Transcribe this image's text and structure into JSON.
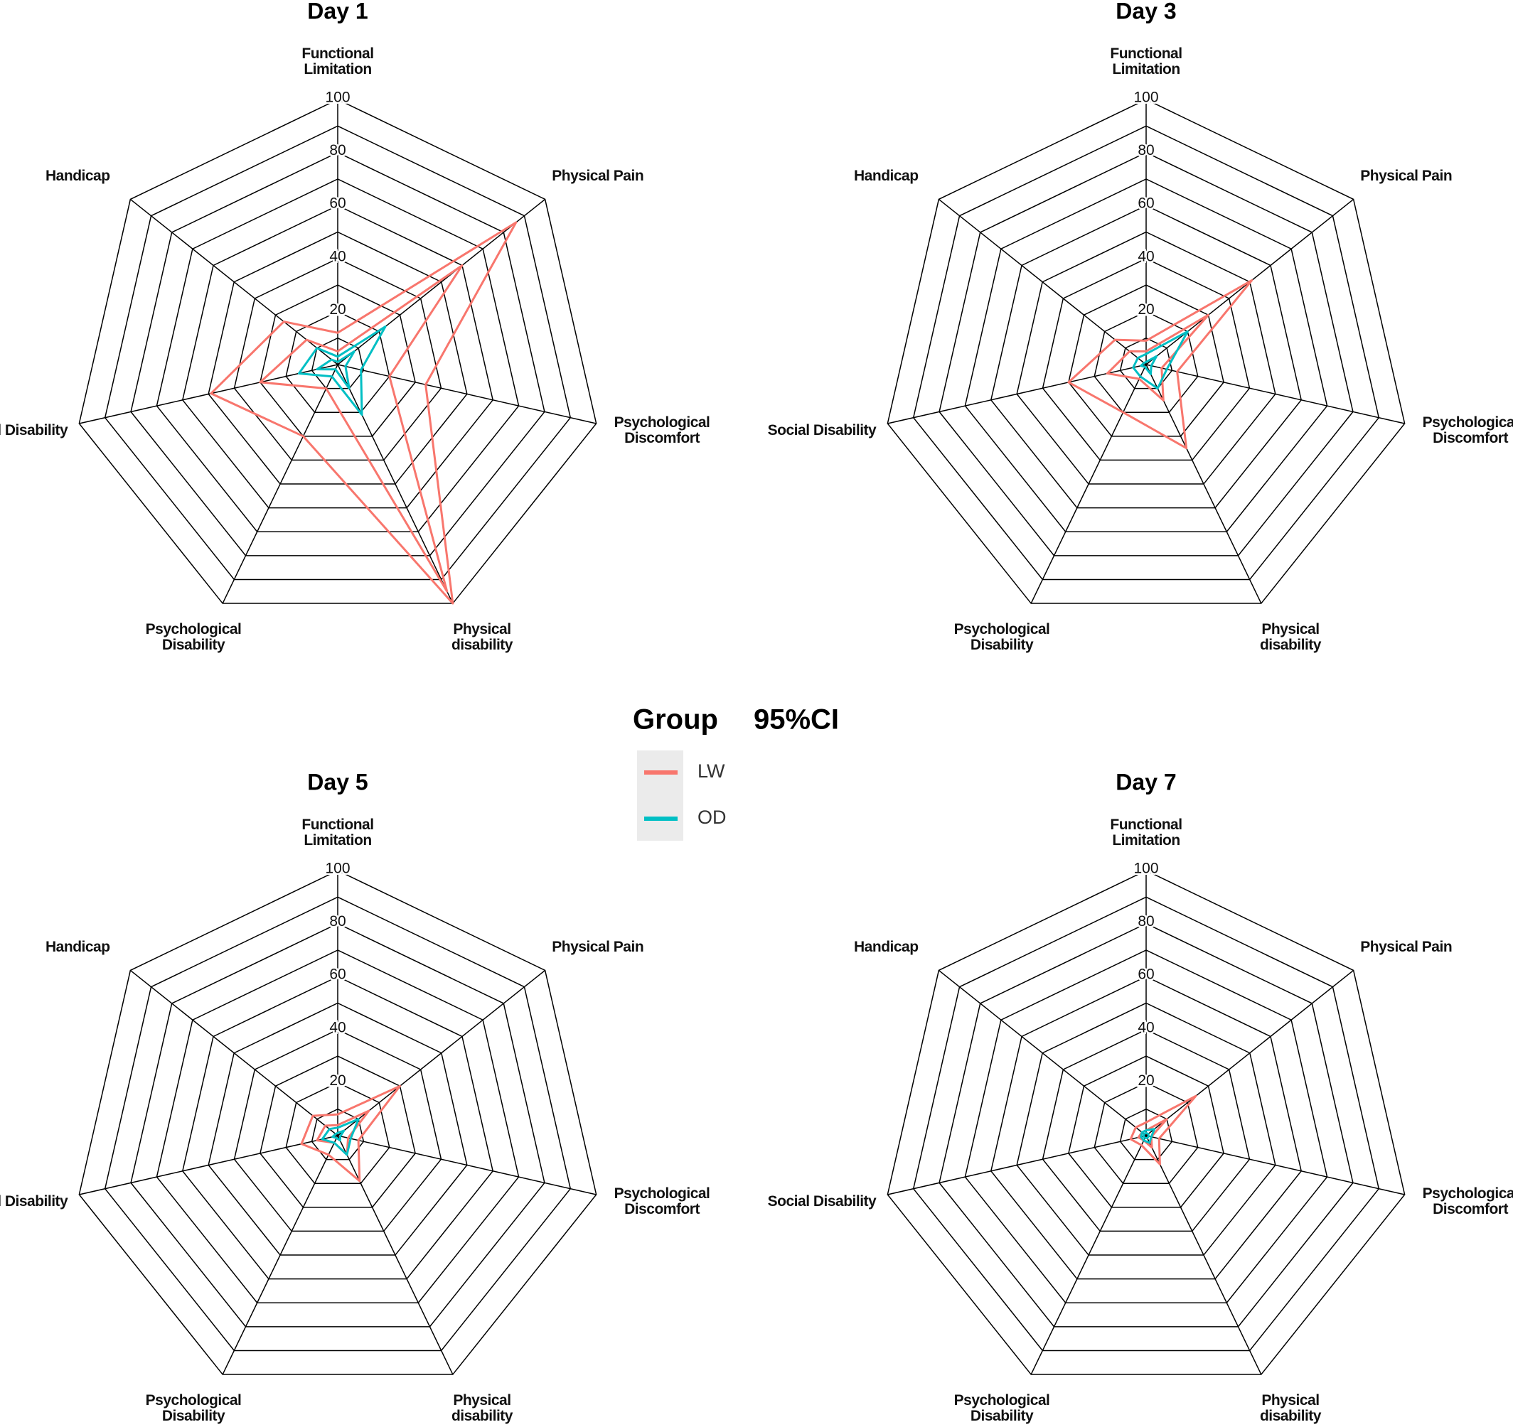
{
  "chart_data": [
    {
      "type": "radar",
      "title": "Day 1",
      "categories": [
        "Functional Limitation",
        "Physical Pain",
        "Psychological Discomfort",
        "Physical disability",
        "Psychological Disability",
        "Social Disability",
        "Handicap"
      ],
      "ylim": [
        0,
        100
      ],
      "yticks": [
        20,
        40,
        60,
        80,
        100
      ],
      "minor_ticks": [
        10,
        30,
        50,
        70,
        90
      ],
      "series": [
        {
          "name": "LW",
          "color": "#f8766d",
          "values": [
            12,
            86,
            34,
            100,
            30,
            49,
            26
          ],
          "lower": [
            5,
            60,
            20,
            95,
            10,
            30,
            15
          ]
        },
        {
          "name": "OD",
          "color": "#00bfc4",
          "values": [
            3,
            23,
            9,
            21,
            5,
            15,
            10
          ],
          "lower": [
            1,
            8,
            3,
            10,
            2,
            8,
            3
          ]
        }
      ]
    },
    {
      "type": "radar",
      "title": "Day 3",
      "categories": [
        "Functional Limitation",
        "Physical Pain",
        "Psychological Discomfort",
        "Physical disability",
        "Psychological Disability",
        "Social Disability",
        "Handicap"
      ],
      "ylim": [
        0,
        100
      ],
      "yticks": [
        20,
        40,
        60,
        80,
        100
      ],
      "minor_ticks": [
        10,
        30,
        50,
        70,
        90
      ],
      "series": [
        {
          "name": "LW",
          "color": "#f8766d",
          "values": [
            9,
            51,
            12,
            35,
            20,
            30,
            15
          ],
          "lower": [
            5,
            30,
            6,
            15,
            6,
            15,
            8
          ]
        },
        {
          "name": "OD",
          "color": "#00bfc4",
          "values": [
            4,
            20,
            8,
            10,
            5,
            5,
            4
          ],
          "lower": [
            1,
            5,
            2,
            4,
            1,
            2,
            1
          ]
        }
      ]
    },
    {
      "type": "radar",
      "title": "Day 5",
      "categories": [
        "Functional Limitation",
        "Physical Pain",
        "Psychological Discomfort",
        "Physical disability",
        "Psychological Disability",
        "Social Disability",
        "Handicap"
      ],
      "ylim": [
        0,
        100
      ],
      "yticks": [
        20,
        40,
        60,
        80,
        100
      ],
      "minor_ticks": [
        10,
        30,
        50,
        70,
        90
      ],
      "series": [
        {
          "name": "LW",
          "color": "#f8766d",
          "values": [
            8,
            30,
            8,
            19,
            8,
            14,
            12
          ],
          "lower": [
            4,
            15,
            4,
            8,
            3,
            8,
            6
          ]
        },
        {
          "name": "OD",
          "color": "#00bfc4",
          "values": [
            3,
            10,
            5,
            8,
            3,
            6,
            4
          ],
          "lower": [
            1,
            3,
            1,
            2,
            1,
            2,
            1
          ]
        }
      ]
    },
    {
      "type": "radar",
      "title": "Day 7",
      "categories": [
        "Functional Limitation",
        "Physical Pain",
        "Psychological Discomfort",
        "Physical disability",
        "Psychological Disability",
        "Social Disability",
        "Handicap"
      ],
      "ylim": [
        0,
        100
      ],
      "yticks": [
        20,
        40,
        60,
        80,
        100
      ],
      "minor_ticks": [
        10,
        30,
        50,
        70,
        90
      ],
      "series": [
        {
          "name": "LW",
          "color": "#f8766d",
          "values": [
            5,
            24,
            5,
            12,
            4,
            6,
            5
          ],
          "lower": [
            2,
            10,
            2,
            5,
            2,
            3,
            2
          ]
        },
        {
          "name": "OD",
          "color": "#00bfc4",
          "values": [
            2,
            4,
            2,
            3,
            2,
            2,
            2
          ],
          "lower": [
            1,
            1,
            1,
            1,
            1,
            1,
            1
          ]
        }
      ]
    }
  ],
  "legend": {
    "title": "Group",
    "subtitle": "95%CI"
  }
}
